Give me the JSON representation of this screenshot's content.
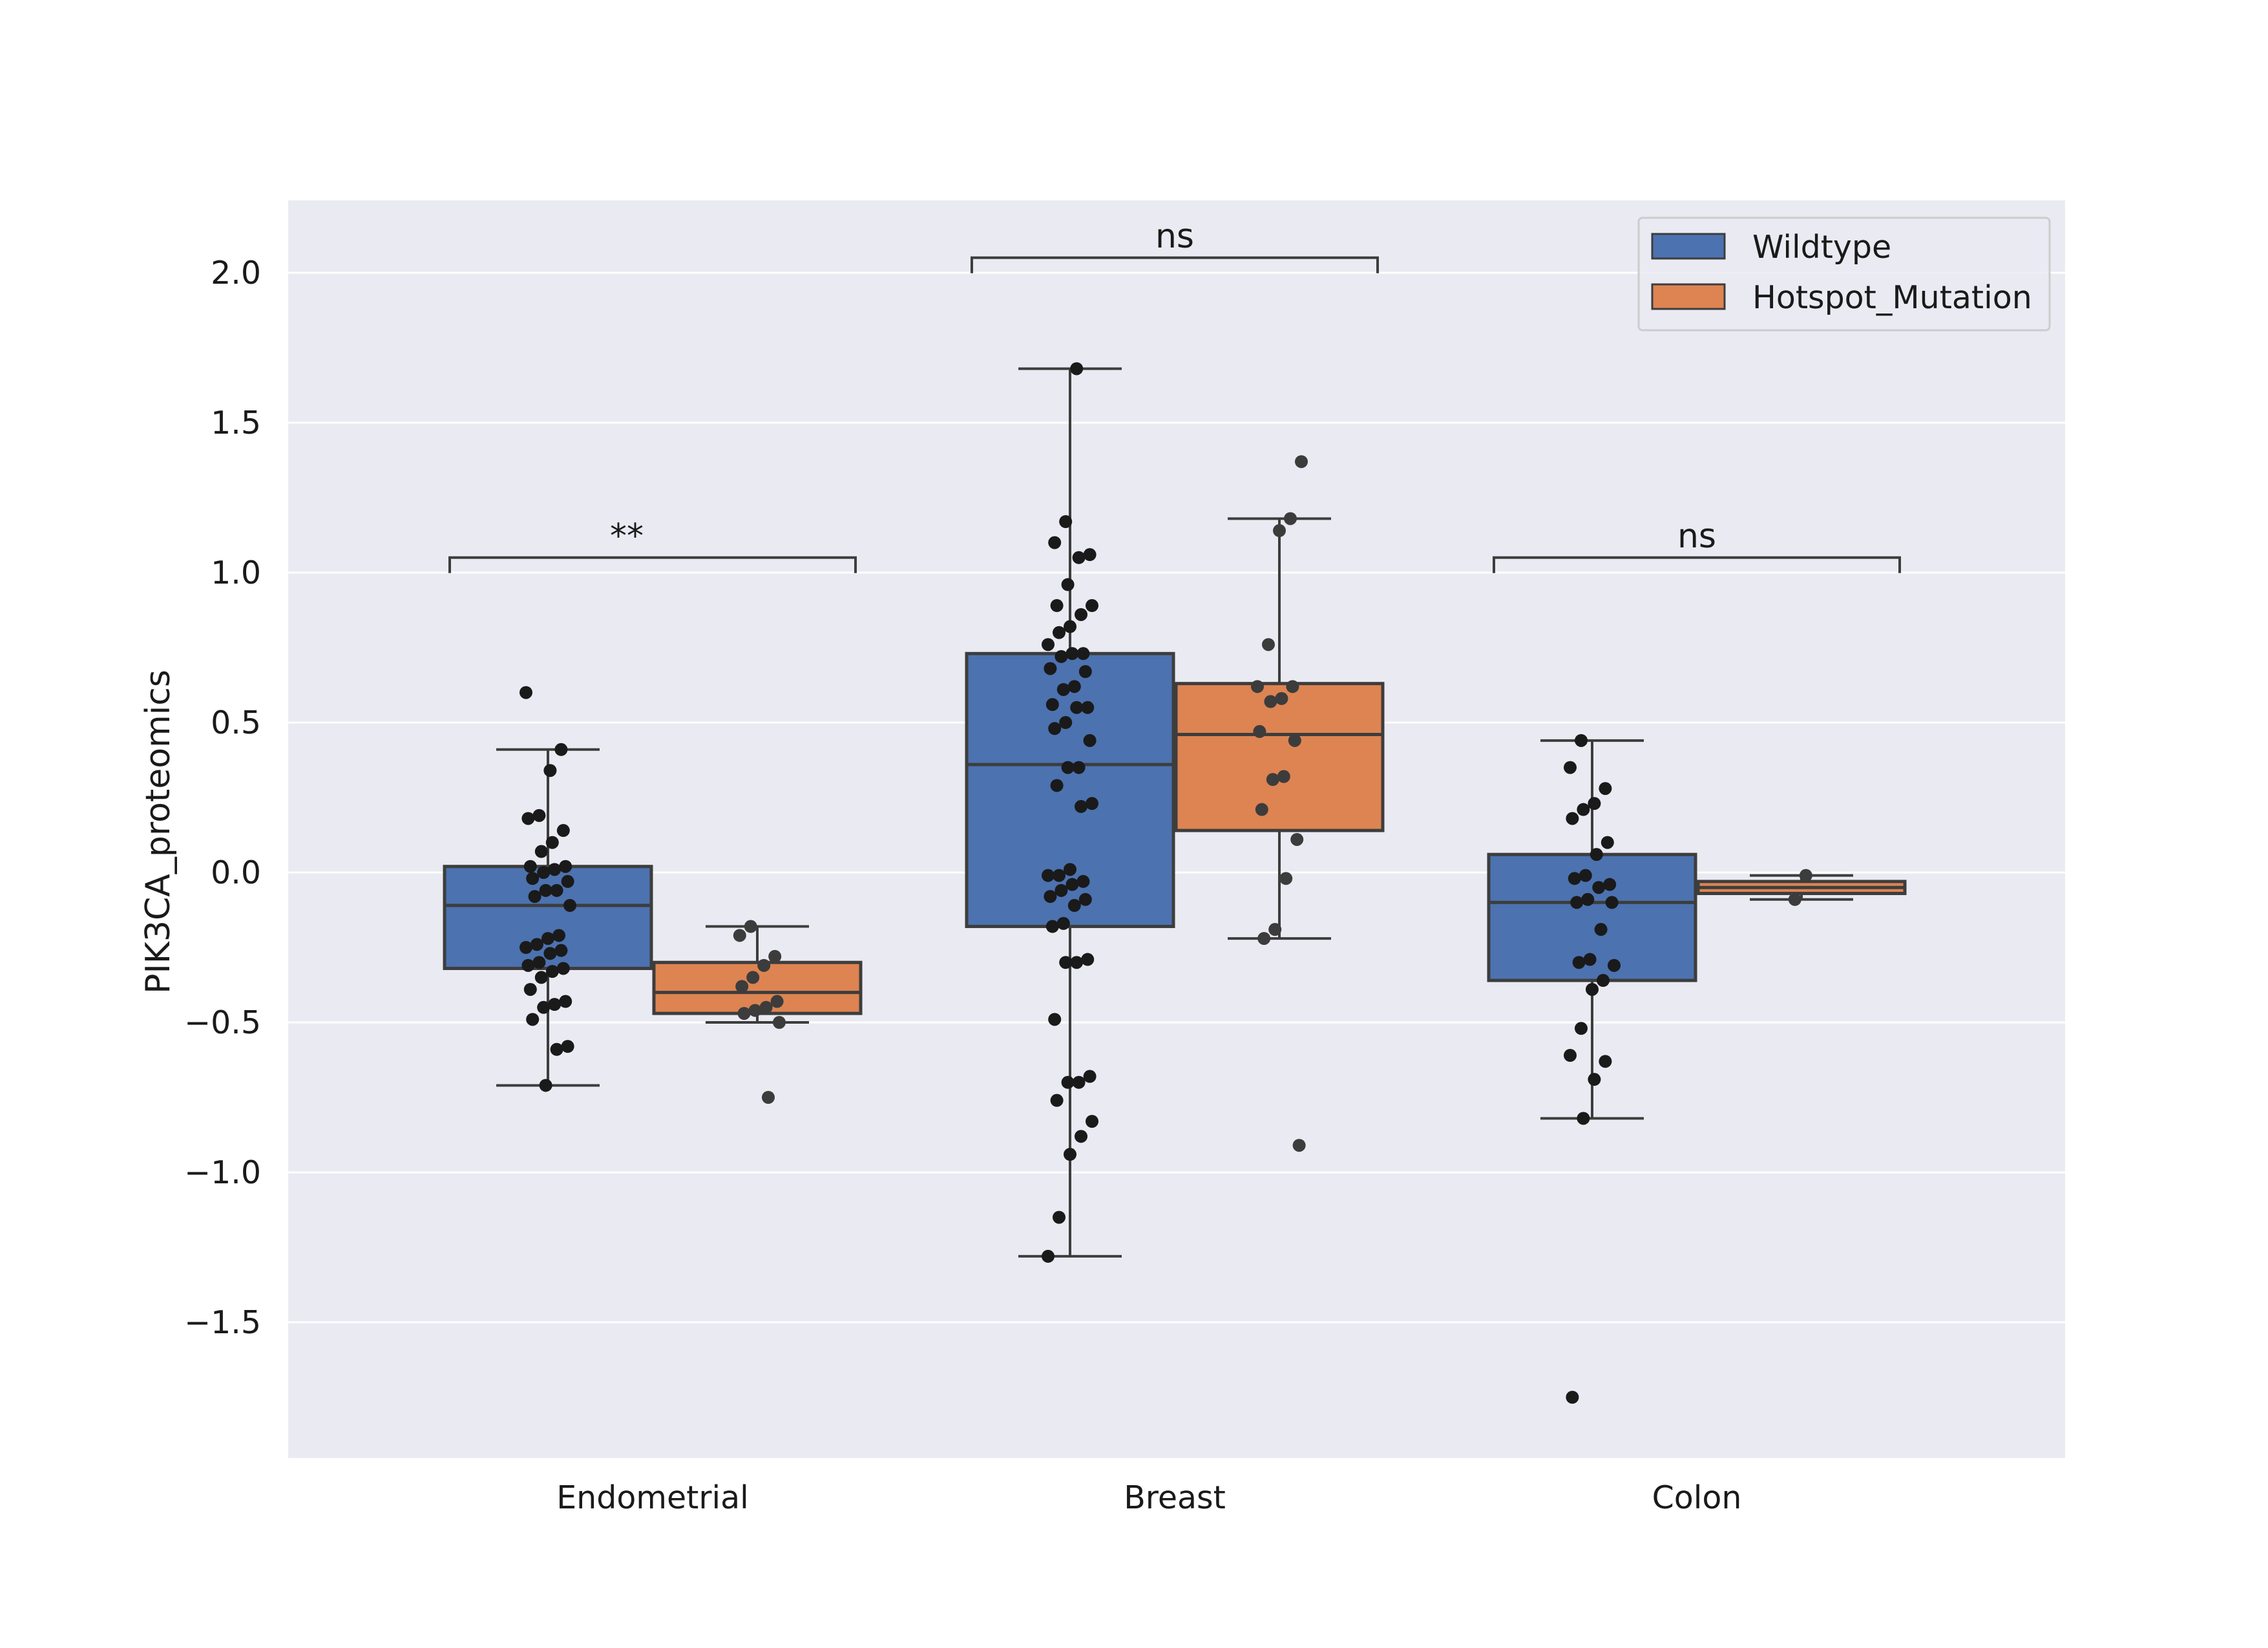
{
  "chart_data": {
    "type": "box",
    "ylabel": "PIK3CA_proteomics",
    "xlabel": "",
    "ylim": [
      -1.95,
      2.23
    ],
    "yticks": [
      2.0,
      1.5,
      1.0,
      0.5,
      0.0,
      -0.5,
      -1.0,
      -1.5
    ],
    "ytick_labels": [
      "2.0",
      "1.5",
      "1.0",
      "0.5",
      "0.0",
      "−0.5",
      "−1.0",
      "−1.5"
    ],
    "grid": true,
    "legend_position": "top-right",
    "categories": [
      "Endometrial",
      "Breast",
      "Colon"
    ],
    "series": [
      {
        "name": "Wildtype",
        "color": "#4c72b0",
        "boxes": [
          {
            "whisker_low": -0.71,
            "q1": -0.32,
            "median": -0.11,
            "q3": 0.02,
            "whisker_high": 0.41,
            "points": [
              0.6,
              0.41,
              0.34,
              0.19,
              0.18,
              0.14,
              0.1,
              0.07,
              0.02,
              0.02,
              0.01,
              0.0,
              -0.02,
              -0.03,
              -0.06,
              -0.06,
              -0.08,
              -0.11,
              -0.21,
              -0.22,
              -0.24,
              -0.25,
              -0.26,
              -0.27,
              -0.3,
              -0.31,
              -0.32,
              -0.33,
              -0.35,
              -0.39,
              -0.43,
              -0.44,
              -0.45,
              -0.49,
              -0.58,
              -0.59,
              -0.71
            ]
          },
          {
            "whisker_low": -1.28,
            "q1": -0.18,
            "median": 0.36,
            "q3": 0.73,
            "whisker_high": 1.68,
            "points": [
              1.68,
              1.17,
              1.1,
              1.06,
              1.05,
              0.96,
              0.89,
              0.89,
              0.86,
              0.82,
              0.8,
              0.76,
              0.73,
              0.73,
              0.72,
              0.68,
              0.67,
              0.62,
              0.61,
              0.56,
              0.55,
              0.55,
              0.5,
              0.48,
              0.44,
              0.35,
              0.35,
              0.29,
              0.23,
              0.22,
              0.01,
              -0.01,
              -0.01,
              -0.03,
              -0.04,
              -0.06,
              -0.08,
              -0.09,
              -0.11,
              -0.17,
              -0.18,
              -0.29,
              -0.3,
              -0.3,
              -0.49,
              -0.68,
              -0.7,
              -0.7,
              -0.76,
              -0.83,
              -0.88,
              -0.94,
              -1.15,
              -1.28
            ]
          },
          {
            "whisker_low": -0.82,
            "q1": -0.36,
            "median": -0.1,
            "q3": 0.06,
            "whisker_high": 0.44,
            "points": [
              0.44,
              0.35,
              0.28,
              0.23,
              0.21,
              0.18,
              0.1,
              0.06,
              -0.01,
              -0.02,
              -0.04,
              -0.05,
              -0.09,
              -0.1,
              -0.1,
              -0.19,
              -0.29,
              -0.3,
              -0.31,
              -0.36,
              -0.39,
              -0.52,
              -0.61,
              -0.63,
              -0.69,
              -0.82,
              -1.75
            ]
          }
        ]
      },
      {
        "name": "Hotspot_Mutation",
        "color": "#dd8452",
        "boxes": [
          {
            "whisker_low": -0.5,
            "q1": -0.47,
            "median": -0.4,
            "q3": -0.3,
            "whisker_high": -0.18,
            "points": [
              -0.18,
              -0.21,
              -0.28,
              -0.31,
              -0.35,
              -0.38,
              -0.43,
              -0.45,
              -0.46,
              -0.47,
              -0.5,
              -0.75
            ]
          },
          {
            "whisker_low": -0.22,
            "q1": 0.14,
            "median": 0.46,
            "q3": 0.63,
            "whisker_high": 1.18,
            "points": [
              1.37,
              1.18,
              1.14,
              0.76,
              0.62,
              0.62,
              0.58,
              0.57,
              0.47,
              0.44,
              0.32,
              0.31,
              0.21,
              0.11,
              -0.02,
              -0.19,
              -0.22,
              -0.91
            ]
          },
          {
            "whisker_low": -0.09,
            "q1": -0.07,
            "median": -0.05,
            "q3": -0.03,
            "whisker_high": -0.01,
            "points": [
              -0.01,
              -0.09
            ]
          }
        ]
      }
    ],
    "annotations": [
      {
        "label": "**",
        "from": "Endometrial/Wildtype",
        "to": "Endometrial/Hotspot_Mutation",
        "y": 1.05
      },
      {
        "label": "ns",
        "from": "Breast/Wildtype",
        "to": "Breast/Hotspot_Mutation",
        "y": 2.05
      },
      {
        "label": "ns",
        "from": "Colon/Wildtype",
        "to": "Colon/Hotspot_Mutation",
        "y": 1.05
      }
    ]
  }
}
